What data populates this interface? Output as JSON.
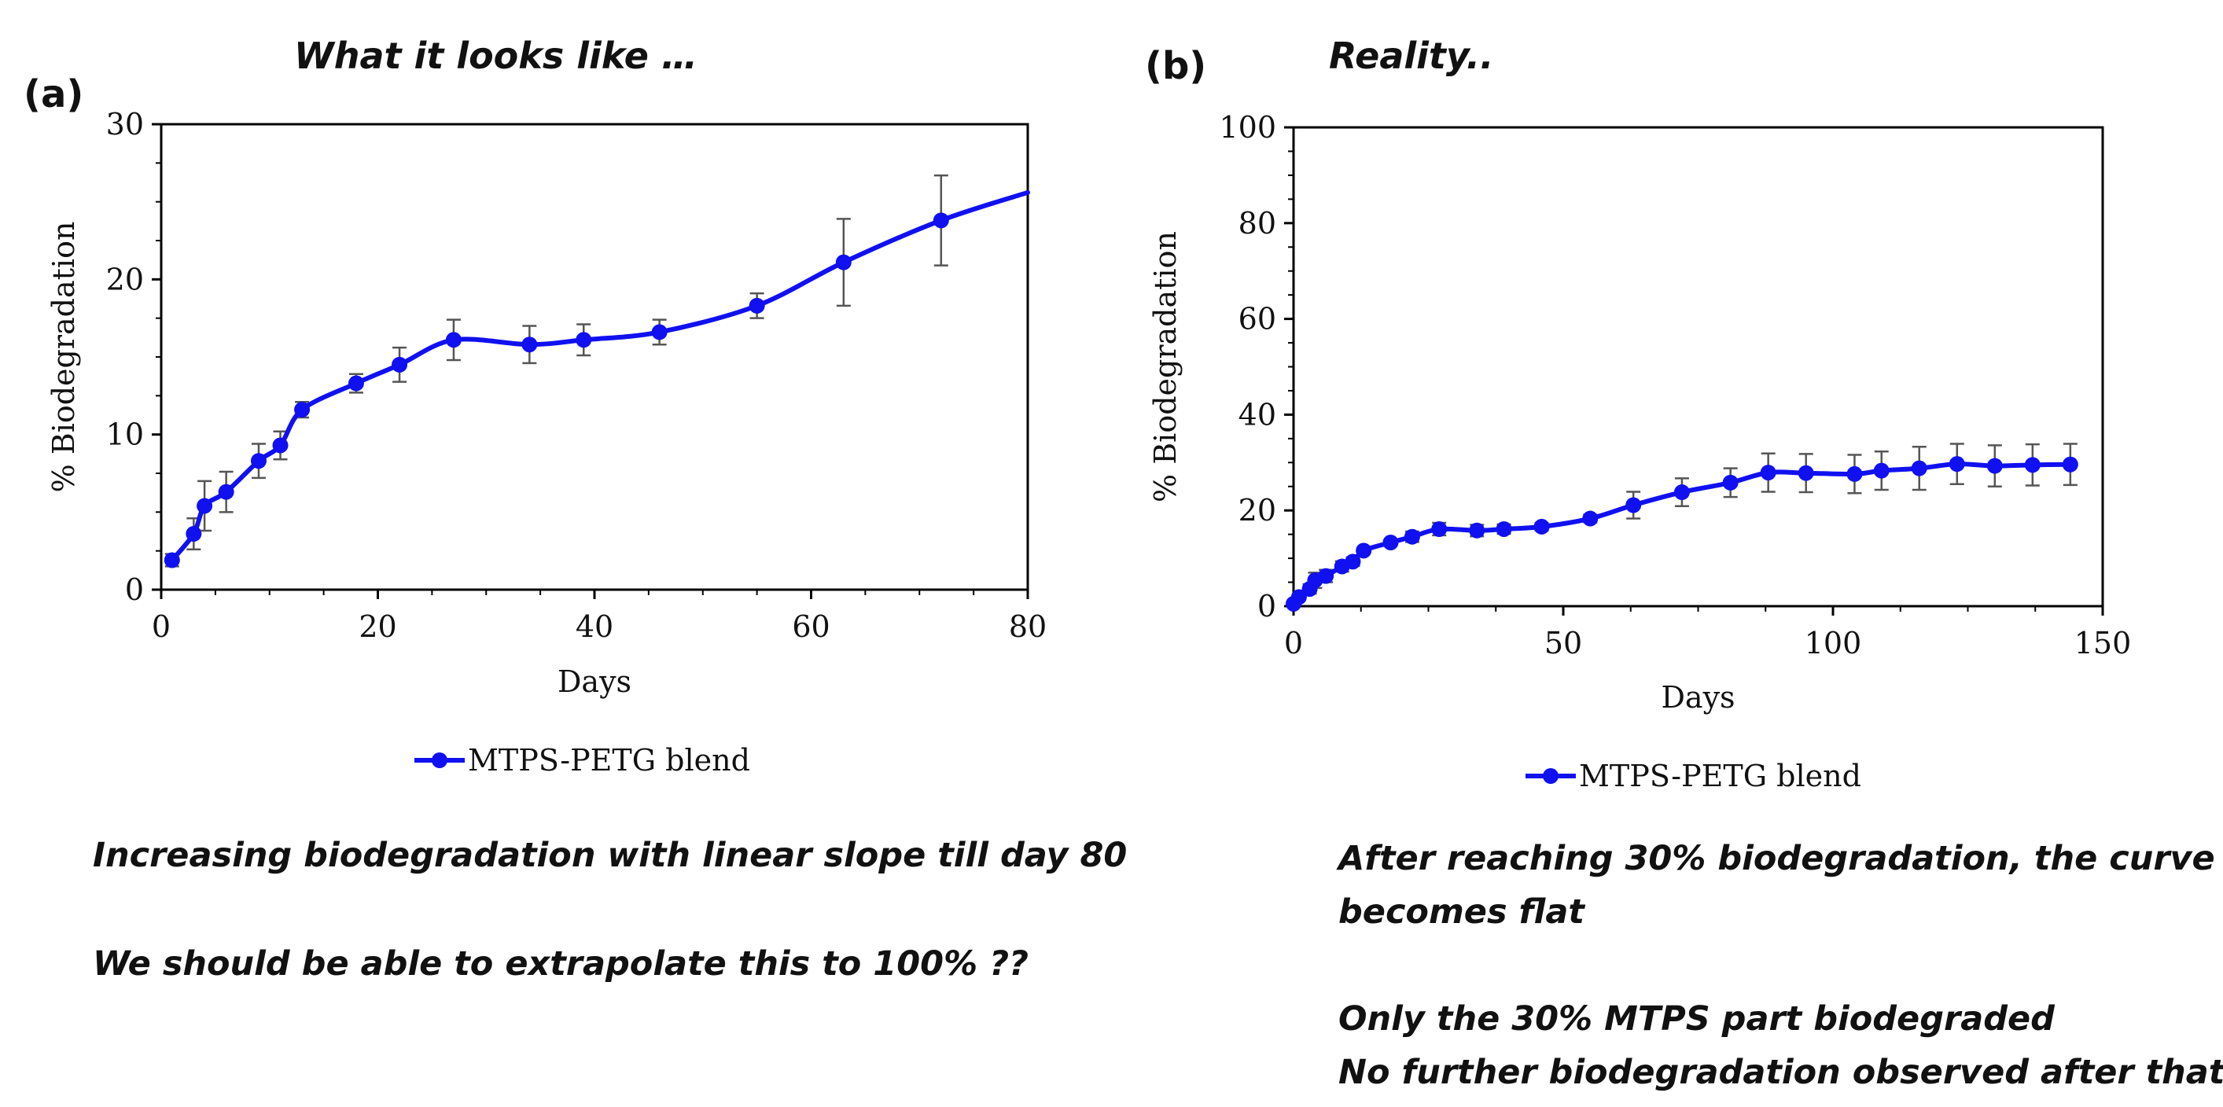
{
  "chart_data": [
    {
      "type": "line",
      "panel_label": "(a)",
      "title": "What it looks like …",
      "xlabel": "Days",
      "ylabel": "% Biodegradation",
      "xlim": [
        0,
        80
      ],
      "ylim": [
        0,
        30
      ],
      "xticks": [
        0,
        20,
        40,
        60,
        80
      ],
      "yticks": [
        0,
        10,
        20,
        30
      ],
      "grid": false,
      "legend": "bottom-center",
      "series": [
        {
          "name": "MTPS-PETG blend",
          "color": "#1010f0",
          "x": [
            1,
            3,
            4,
            6,
            9,
            11,
            13,
            18,
            22,
            27,
            34,
            39,
            46,
            55,
            63,
            72
          ],
          "y": [
            1.9,
            3.6,
            5.4,
            6.3,
            8.3,
            9.3,
            11.6,
            13.3,
            14.5,
            16.1,
            15.8,
            16.1,
            16.6,
            18.3,
            21.1,
            23.8
          ],
          "error": [
            0.4,
            1.0,
            1.6,
            1.3,
            1.1,
            0.9,
            0.5,
            0.6,
            1.1,
            1.3,
            1.2,
            1.0,
            0.8,
            0.8,
            2.8,
            2.9
          ],
          "trend_end": [
            80,
            25.6
          ]
        }
      ],
      "notes": [
        "Increasing biodegradation with linear slope till day 80",
        "We should be able to extrapolate this to 100% ??"
      ]
    },
    {
      "type": "line",
      "panel_label": "(b)",
      "title": "Reality..",
      "xlabel": "Days",
      "ylabel": "% Biodegradation",
      "xlim": [
        0,
        150
      ],
      "ylim": [
        0,
        100
      ],
      "xticks": [
        0,
        50,
        100,
        150
      ],
      "yticks": [
        0,
        20,
        40,
        60,
        80,
        100
      ],
      "grid": false,
      "legend": "bottom-center",
      "series": [
        {
          "name": "MTPS-PETG blend",
          "color": "#1010f0",
          "x": [
            0,
            1,
            3,
            4,
            6,
            9,
            11,
            13,
            18,
            22,
            27,
            34,
            39,
            46,
            55,
            63,
            72,
            81,
            88,
            95,
            104,
            109,
            116,
            123,
            130,
            137,
            144
          ],
          "y": [
            0.5,
            1.9,
            3.6,
            5.4,
            6.3,
            8.3,
            9.3,
            11.6,
            13.3,
            14.5,
            16.1,
            15.8,
            16.1,
            16.6,
            18.3,
            21.1,
            23.8,
            25.8,
            27.9,
            27.8,
            27.6,
            28.3,
            28.8,
            29.7,
            29.3,
            29.5,
            29.6
          ],
          "error": [
            0,
            0.4,
            1.0,
            1.6,
            1.3,
            1.1,
            0.9,
            0.5,
            0.6,
            1.1,
            1.3,
            1.2,
            1.0,
            0.8,
            0.8,
            2.8,
            2.9,
            3.0,
            4.0,
            4.0,
            4.0,
            4.0,
            4.5,
            4.2,
            4.3,
            4.3,
            4.3
          ]
        }
      ],
      "notes": [
        "After reaching 30% biodegradation, the curve",
        "becomes flat",
        "Only the 30% MTPS part biodegraded",
        "No further biodegradation observed after that."
      ]
    }
  ]
}
